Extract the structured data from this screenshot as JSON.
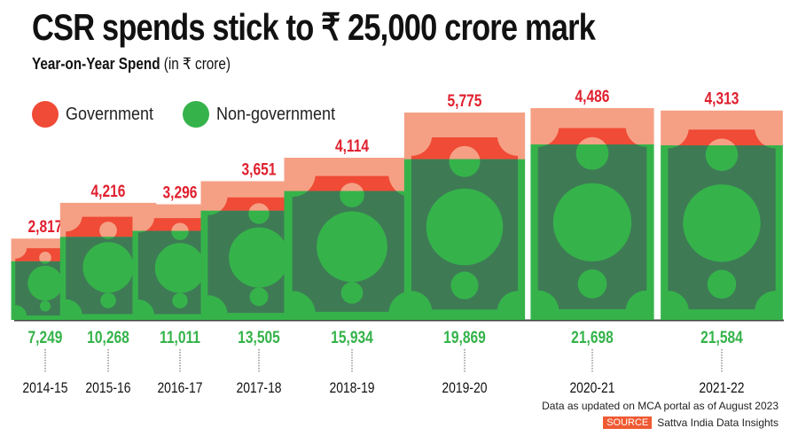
{
  "header": {
    "title": "CSR spends stick to ₹ 25,000 crore mark",
    "subtitle_bold": "Year-on-Year Spend",
    "subtitle_rest": " (in ₹ crore)"
  },
  "legend": [
    {
      "label": "Government",
      "color": "#ef4b36"
    },
    {
      "label": "Non-government",
      "color": "#35b34a"
    }
  ],
  "colors": {
    "gov_light": "#f5a085",
    "gov_dark": "#ef4b36",
    "nongov_light": "#35b34a",
    "nongov_dark": "#3e7b55",
    "gov_label": "#e0202f",
    "nongov_label": "#35b34a",
    "axis": "#444444"
  },
  "footer": {
    "note": "Data as updated on MCA portal as of August 2023",
    "source_tag": "SOURCE",
    "source_text": "Sattva India Data Insights"
  },
  "chart_data": {
    "type": "bar",
    "stacked": true,
    "title": "CSR spends stick to ₹ 25,000 crore mark",
    "subtitle": "Year-on-Year Spend (in ₹ crore)",
    "xlabel": "",
    "ylabel": "₹ crore",
    "categories": [
      "2014-15",
      "2015-16",
      "2016-17",
      "2017-18",
      "2018-19",
      "2019-20",
      "2020-21",
      "2021-22"
    ],
    "series": [
      {
        "name": "Non-government",
        "values": [
          7249,
          10268,
          11011,
          13505,
          15934,
          19869,
          21698,
          21584
        ]
      },
      {
        "name": "Government",
        "values": [
          2817,
          4216,
          3296,
          3651,
          4114,
          5775,
          4486,
          4313
        ]
      }
    ],
    "value_labels": {
      "government": [
        "2,817",
        "4,216",
        "3,296",
        "3,651",
        "4,114",
        "5,775",
        "4,486",
        "4,313"
      ],
      "non_government": [
        "7,249",
        "10,268",
        "11,011",
        "13,505",
        "15,934",
        "19,869",
        "21,698",
        "21,584"
      ]
    },
    "legend_position": "top-left",
    "grid": false,
    "ylim": [
      0,
      26000
    ]
  }
}
